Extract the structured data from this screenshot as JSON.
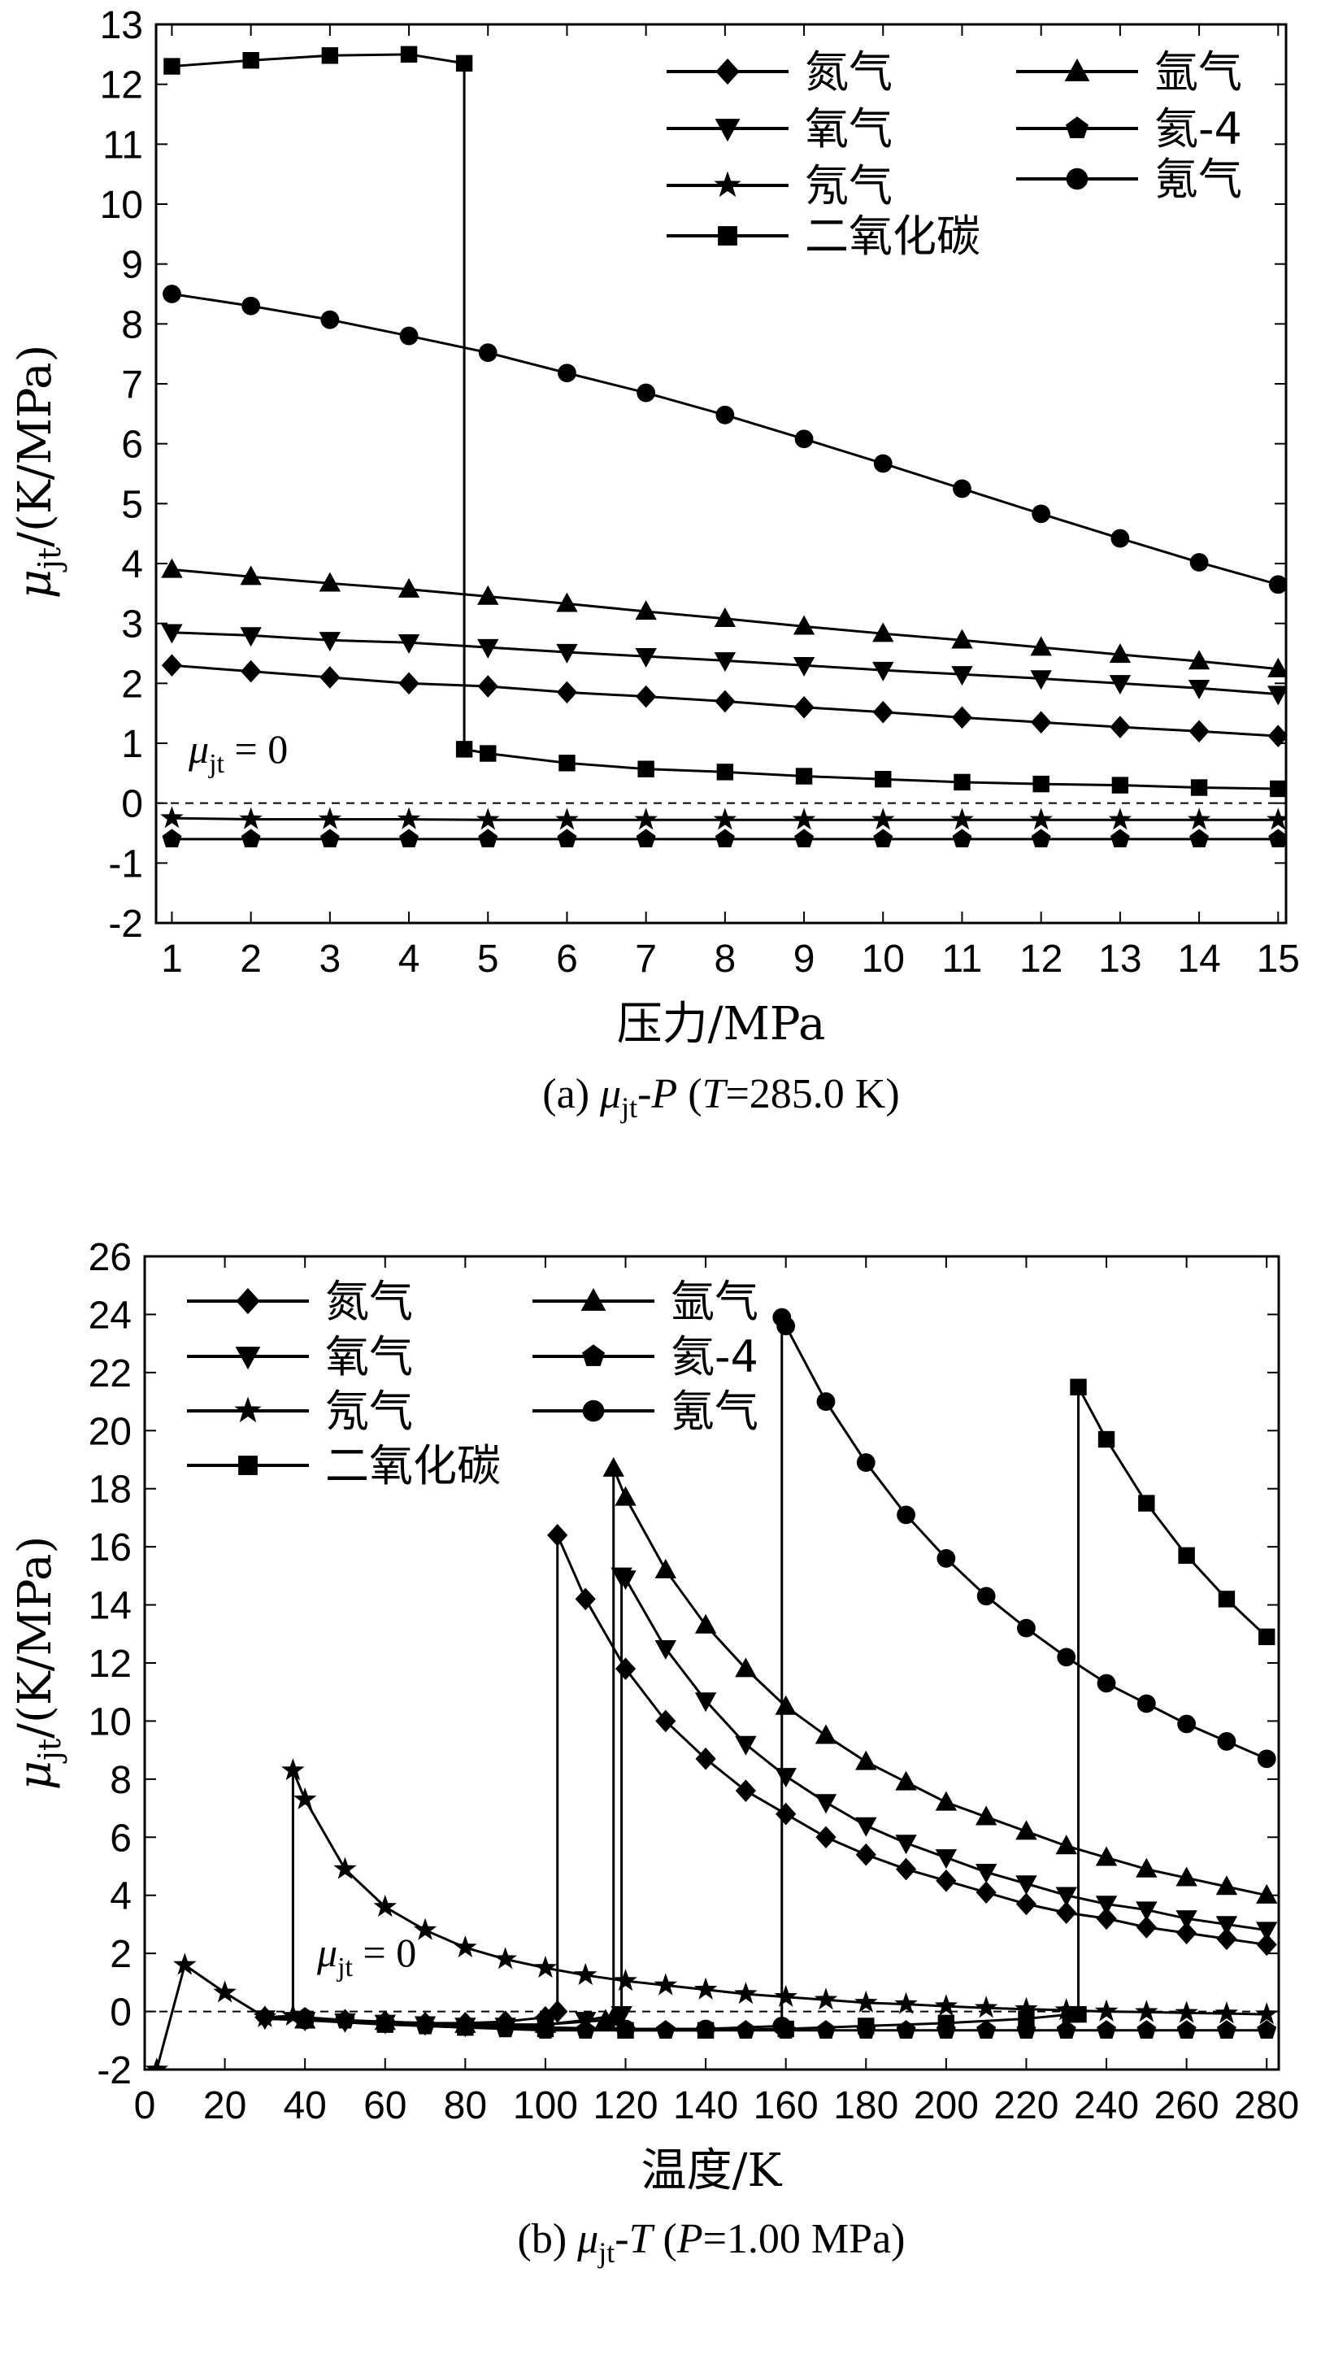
{
  "chart_data": [
    {
      "id": "a",
      "type": "line",
      "caption": "(a) μjt-P (T=285.0 K)",
      "caption_parts": {
        "open": "(a) ",
        "mu": "μ",
        "sub": "jt",
        "mid": "-",
        "var": "P",
        "rest1": " (",
        "var2": "T",
        "rest2": "=285.0 K)"
      },
      "xlabel": "压力/MPa",
      "ylabel": "μjt/(K/MPa)",
      "ylabel_parts": {
        "mu": "μ",
        "sub": "jt",
        "unit": "/(K/MPa)"
      },
      "zero_label": {
        "mu": "μ",
        "sub": "jt",
        "eq": " = 0"
      },
      "xlim": [
        0.8,
        15.1
      ],
      "ylim": [
        -2,
        13
      ],
      "xticks": [
        1,
        2,
        3,
        4,
        5,
        6,
        7,
        8,
        9,
        10,
        11,
        12,
        13,
        14,
        15
      ],
      "yticks": [
        -2,
        -1,
        0,
        1,
        2,
        3,
        4,
        5,
        6,
        7,
        8,
        9,
        10,
        11,
        12,
        13
      ],
      "series": [
        {
          "name": "氮气",
          "marker": "diamond",
          "x": [
            1,
            2,
            3,
            4,
            5,
            6,
            7,
            8,
            9,
            10,
            11,
            12,
            13,
            14,
            15
          ],
          "y": [
            2.3,
            2.2,
            2.1,
            2.0,
            1.95,
            1.85,
            1.78,
            1.7,
            1.6,
            1.52,
            1.43,
            1.35,
            1.27,
            1.2,
            1.12
          ]
        },
        {
          "name": "氧气",
          "marker": "triangle-down",
          "x": [
            1,
            2,
            3,
            4,
            5,
            6,
            7,
            8,
            9,
            10,
            11,
            12,
            13,
            14,
            15
          ],
          "y": [
            2.85,
            2.8,
            2.72,
            2.68,
            2.6,
            2.52,
            2.45,
            2.38,
            2.3,
            2.22,
            2.15,
            2.08,
            2.0,
            1.92,
            1.82
          ]
        },
        {
          "name": "氖气",
          "marker": "star",
          "x": [
            1,
            2,
            3,
            4,
            5,
            6,
            7,
            8,
            9,
            10,
            11,
            12,
            13,
            14,
            15
          ],
          "y": [
            -0.25,
            -0.27,
            -0.27,
            -0.27,
            -0.28,
            -0.28,
            -0.28,
            -0.28,
            -0.28,
            -0.28,
            -0.28,
            -0.28,
            -0.28,
            -0.28,
            -0.28
          ]
        },
        {
          "name": "二氧化碳",
          "marker": "square",
          "x": [
            1,
            2,
            3,
            4,
            4.7,
            4.7,
            5,
            6,
            7,
            8,
            9,
            10,
            11,
            12,
            13,
            14,
            15
          ],
          "y": [
            12.3,
            12.4,
            12.48,
            12.5,
            12.35,
            0.9,
            0.83,
            0.67,
            0.57,
            0.52,
            0.45,
            0.4,
            0.35,
            0.32,
            0.3,
            0.26,
            0.24
          ]
        },
        {
          "name": "氩气",
          "marker": "triangle-up",
          "x": [
            1,
            2,
            3,
            4,
            5,
            6,
            7,
            8,
            9,
            10,
            11,
            12,
            13,
            14,
            15
          ],
          "y": [
            3.9,
            3.78,
            3.67,
            3.57,
            3.45,
            3.33,
            3.2,
            3.08,
            2.95,
            2.83,
            2.72,
            2.6,
            2.48,
            2.37,
            2.24
          ]
        },
        {
          "name": "氦-4",
          "marker": "pentagon",
          "x": [
            1,
            2,
            3,
            4,
            5,
            6,
            7,
            8,
            9,
            10,
            11,
            12,
            13,
            14,
            15
          ],
          "y": [
            -0.6,
            -0.6,
            -0.6,
            -0.6,
            -0.6,
            -0.6,
            -0.6,
            -0.6,
            -0.6,
            -0.6,
            -0.6,
            -0.6,
            -0.6,
            -0.6,
            -0.6
          ]
        },
        {
          "name": "氪气",
          "marker": "circle",
          "x": [
            1,
            2,
            3,
            4,
            5,
            6,
            7,
            8,
            9,
            10,
            11,
            12,
            13,
            14,
            15
          ],
          "y": [
            8.5,
            8.3,
            8.07,
            7.8,
            7.52,
            7.18,
            6.85,
            6.48,
            6.08,
            5.67,
            5.25,
            4.83,
            4.42,
            4.02,
            3.65
          ]
        }
      ]
    },
    {
      "id": "b",
      "type": "line",
      "caption": "(b) μjt-T (P=1.00 MPa)",
      "caption_parts": {
        "open": "(b) ",
        "mu": "μ",
        "sub": "jt",
        "mid": "-",
        "var": "T",
        "rest1": " (",
        "var2": "P",
        "rest2": "=1.00 MPa)"
      },
      "xlabel": "温度/K",
      "ylabel": "μjt/(K/MPa)",
      "ylabel_parts": {
        "mu": "μ",
        "sub": "jt",
        "unit": "/(K/MPa)"
      },
      "zero_label": {
        "mu": "μ",
        "sub": "jt",
        "eq": " = 0"
      },
      "xlim": [
        0,
        283
      ],
      "ylim": [
        -2,
        26
      ],
      "xticks": [
        0,
        20,
        40,
        60,
        80,
        100,
        120,
        140,
        160,
        180,
        200,
        220,
        240,
        260,
        280
      ],
      "yticks": [
        -2,
        0,
        2,
        4,
        6,
        8,
        10,
        12,
        14,
        16,
        18,
        20,
        22,
        24,
        26
      ],
      "series": [
        {
          "name": "氮气",
          "marker": "diamond",
          "x": [
            30,
            40,
            50,
            60,
            70,
            80,
            90,
            100,
            103,
            103,
            110,
            120,
            130,
            140,
            150,
            160,
            170,
            180,
            190,
            200,
            210,
            220,
            230,
            240,
            250,
            260,
            270,
            280
          ],
          "y": [
            -0.2,
            -0.25,
            -0.3,
            -0.35,
            -0.4,
            -0.4,
            -0.35,
            -0.2,
            0.0,
            16.4,
            14.2,
            11.8,
            10.0,
            8.7,
            7.6,
            6.8,
            6.0,
            5.4,
            4.9,
            4.5,
            4.1,
            3.7,
            3.4,
            3.2,
            2.9,
            2.7,
            2.5,
            2.3
          ]
        },
        {
          "name": "氧气",
          "marker": "triangle-down",
          "x": [
            30,
            40,
            50,
            60,
            70,
            80,
            90,
            100,
            110,
            119,
            119,
            120,
            130,
            140,
            150,
            160,
            170,
            180,
            190,
            200,
            210,
            220,
            230,
            240,
            250,
            260,
            270,
            280
          ],
          "y": [
            -0.25,
            -0.3,
            -0.35,
            -0.4,
            -0.45,
            -0.5,
            -0.5,
            -0.45,
            -0.3,
            -0.1,
            15.0,
            14.9,
            12.5,
            10.7,
            9.2,
            8.1,
            7.2,
            6.4,
            5.8,
            5.3,
            4.8,
            4.4,
            4.0,
            3.7,
            3.5,
            3.2,
            3.0,
            2.8
          ]
        },
        {
          "name": "氖气",
          "marker": "star",
          "x": [
            3,
            10,
            20,
            30,
            37,
            37,
            40,
            50,
            60,
            70,
            80,
            90,
            100,
            110,
            120,
            130,
            140,
            150,
            160,
            170,
            180,
            190,
            200,
            210,
            220,
            230,
            240,
            250,
            260,
            270,
            280
          ],
          "y": [
            -2,
            1.6,
            0.65,
            -0.2,
            -0.15,
            8.3,
            7.3,
            4.9,
            3.6,
            2.8,
            2.2,
            1.8,
            1.5,
            1.25,
            1.05,
            0.9,
            0.75,
            0.6,
            0.5,
            0.4,
            0.3,
            0.25,
            0.18,
            0.12,
            0.08,
            0.04,
            0.0,
            -0.02,
            -0.05,
            -0.07,
            -0.1
          ]
        },
        {
          "name": "二氧化碳",
          "marker": "square",
          "x": [
            40,
            60,
            80,
            100,
            120,
            140,
            160,
            180,
            200,
            220,
            231,
            233,
            233,
            240,
            250,
            260,
            270,
            280
          ],
          "y": [
            -0.3,
            -0.45,
            -0.55,
            -0.6,
            -0.65,
            -0.65,
            -0.6,
            -0.5,
            -0.4,
            -0.25,
            -0.1,
            -0.1,
            21.5,
            19.7,
            17.5,
            15.7,
            14.2,
            12.9
          ]
        },
        {
          "name": "氩气",
          "marker": "triangle-up",
          "x": [
            40,
            60,
            80,
            100,
            115,
            117,
            117,
            120,
            130,
            140,
            150,
            160,
            170,
            180,
            190,
            200,
            210,
            220,
            230,
            240,
            250,
            260,
            270,
            280
          ],
          "y": [
            -0.3,
            -0.35,
            -0.45,
            -0.45,
            -0.3,
            -0.2,
            18.7,
            17.7,
            15.2,
            13.3,
            11.8,
            10.5,
            9.5,
            8.6,
            7.9,
            7.2,
            6.7,
            6.2,
            5.7,
            5.3,
            4.9,
            4.6,
            4.3,
            4.0
          ]
        },
        {
          "name": "氦-4",
          "marker": "pentagon",
          "x": [
            40,
            50,
            60,
            70,
            80,
            90,
            100,
            110,
            120,
            130,
            140,
            150,
            160,
            170,
            180,
            190,
            200,
            210,
            220,
            230,
            240,
            250,
            260,
            270,
            280
          ],
          "y": [
            -0.2,
            -0.3,
            -0.4,
            -0.5,
            -0.55,
            -0.6,
            -0.65,
            -0.65,
            -0.65,
            -0.65,
            -0.65,
            -0.65,
            -0.65,
            -0.65,
            -0.65,
            -0.65,
            -0.65,
            -0.65,
            -0.65,
            -0.65,
            -0.65,
            -0.65,
            -0.65,
            -0.65,
            -0.65
          ]
        },
        {
          "name": "氪气",
          "marker": "circle",
          "x": [
            40,
            60,
            80,
            100,
            120,
            140,
            159,
            159,
            160,
            170,
            180,
            190,
            200,
            210,
            220,
            230,
            240,
            250,
            260,
            270,
            280
          ],
          "y": [
            -0.3,
            -0.4,
            -0.5,
            -0.55,
            -0.6,
            -0.6,
            -0.5,
            23.9,
            23.6,
            21.0,
            18.9,
            17.1,
            15.6,
            14.3,
            13.2,
            12.2,
            11.3,
            10.6,
            9.9,
            9.3,
            8.7
          ]
        }
      ]
    }
  ]
}
